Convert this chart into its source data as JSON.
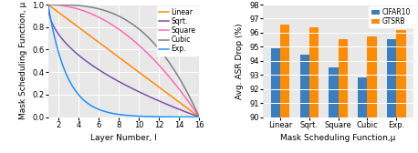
{
  "left_plot": {
    "xlabel": "Layer Number, l",
    "ylabel": "Mask Scheduling Function, μ",
    "xlim": [
      1,
      16
    ],
    "ylim": [
      0.0,
      1.0
    ],
    "xticks": [
      2,
      4,
      6,
      8,
      10,
      12,
      14,
      16
    ],
    "yticks": [
      0.0,
      0.2,
      0.4,
      0.6,
      0.8,
      1.0
    ],
    "curves": [
      {
        "label": "Linear",
        "color": "#FF8C00",
        "type": "linear"
      },
      {
        "label": "Sqrt.",
        "color": "#7B52AB",
        "type": "sqrt"
      },
      {
        "label": "Square",
        "color": "#FF69B4",
        "type": "square"
      },
      {
        "label": "Cubic",
        "color": "#808080",
        "type": "cubic"
      },
      {
        "label": "Exp.",
        "color": "#1E90FF",
        "type": "exp"
      }
    ],
    "exp_k": 8.0
  },
  "right_plot": {
    "xlabel": "Mask Scheduling Function,μ",
    "ylabel": "Avg. ASR Drop (%)",
    "ylim": [
      90,
      98
    ],
    "yticks": [
      90,
      91,
      92,
      93,
      94,
      95,
      96,
      97,
      98
    ],
    "categories": [
      "Linear",
      "Sqrt.",
      "Square",
      "Cubic",
      "Exp."
    ],
    "cifar10_values": [
      94.9,
      94.45,
      93.55,
      92.82,
      95.55
    ],
    "gtsrb_values": [
      96.55,
      96.38,
      95.55,
      95.75,
      96.18
    ],
    "bar_colors": [
      "#3A7EBF",
      "#FF8C00"
    ],
    "legend_labels": [
      "CIFAR10",
      "GTSRB"
    ],
    "bar_width": 0.32
  }
}
